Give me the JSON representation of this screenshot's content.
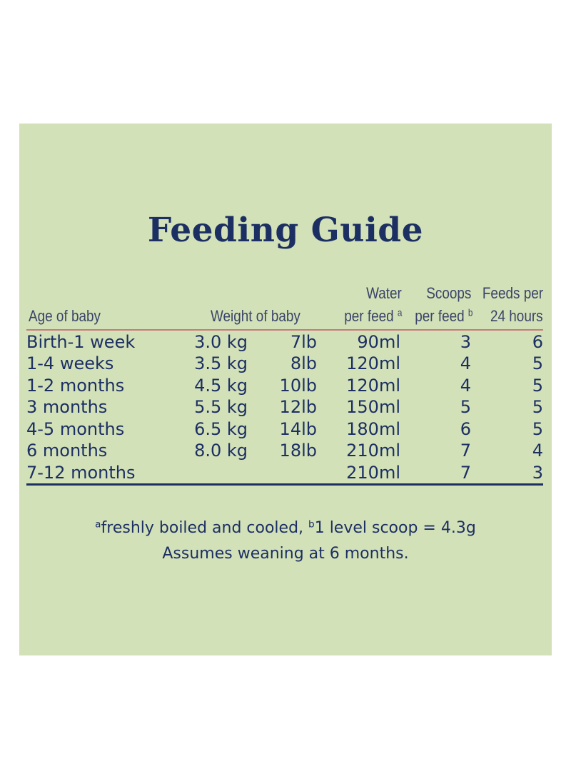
{
  "title": "Feeding Guide",
  "headers": {
    "age": "Age of baby",
    "weight": "Weight of baby",
    "water_line1": "Water",
    "water_line2": "per feed",
    "water_sup": "a",
    "scoops_line1": "Scoops",
    "scoops_line2": "per feed",
    "scoops_sup": "b",
    "feeds_line1": "Feeds per",
    "feeds_line2": "24 hours"
  },
  "rows": [
    {
      "age": "Birth-1 week",
      "kg": "3.0 kg",
      "lb": "7lb",
      "water": "90ml",
      "scoops": "3",
      "feeds": "6"
    },
    {
      "age": "1-4 weeks",
      "kg": "3.5 kg",
      "lb": "8lb",
      "water": "120ml",
      "scoops": "4",
      "feeds": "5"
    },
    {
      "age": "1-2 months",
      "kg": "4.5 kg",
      "lb": "10lb",
      "water": "120ml",
      "scoops": "4",
      "feeds": "5"
    },
    {
      "age": "3 months",
      "kg": "5.5 kg",
      "lb": "12lb",
      "water": "150ml",
      "scoops": "5",
      "feeds": "5"
    },
    {
      "age": "4-5 months",
      "kg": "6.5 kg",
      "lb": "14lb",
      "water": "180ml",
      "scoops": "6",
      "feeds": "5"
    },
    {
      "age": "6 months",
      "kg": "8.0 kg",
      "lb": "18lb",
      "water": "210ml",
      "scoops": "7",
      "feeds": "4"
    },
    {
      "age": "7-12 months",
      "kg": "",
      "lb": "",
      "water": "210ml",
      "scoops": "7",
      "feeds": "3"
    }
  ],
  "footnotes": {
    "a_marker": "a",
    "a_text": "freshly boiled and cooled,",
    "b_marker": "b",
    "b_text": "1 level scoop = 4.3g",
    "line2": "Assumes weaning at 6 months."
  },
  "colors": {
    "panel_background": "#d3e1b8",
    "text_navy": "#1c2f63",
    "header_rule": "#c97b7b"
  }
}
